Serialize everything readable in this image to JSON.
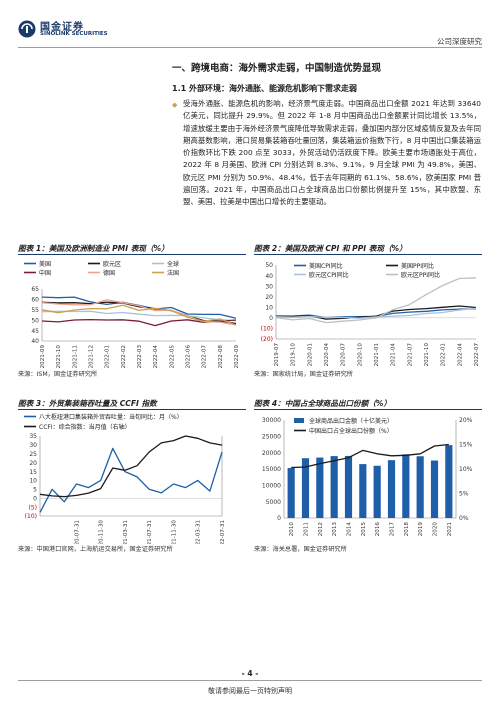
{
  "header": {
    "logo_cn": "国金证券",
    "logo_en": "SINOLINK SECURITIES",
    "report_type": "公司深度研究"
  },
  "section": {
    "h1": "一、跨境电商：海外需求走弱，中国制造优势显现",
    "h2": "1.1 外部环境：海外通胀、能源危机影响下需求走弱",
    "paragraph": "受海外通胀、能源危机的影响，经济景气度走弱。中国商品出口金额 2021 年达到 33640 亿美元，同比提升 29.9%。但 2022 年 1-8 月中国商品出口金额累计同比增长 13.5%，增速放缓主要由于海外经济景气度降低导致需求走弱，叠加国内部分区域疫情反复及去年同期高基数影响，港口贸易集装箱吞吐量回落，集装箱运价指数下行，8 月中国出口集装箱运价指数环比下跌 200 点至 3033，外贸活动仍活跃度下降。欧美主要市场通胀处于高位，2022 年 8 月美国、欧洲 CPI 分别达到 8.3%、9.1%，9 月全球 PMI 为 49.8%，美国、欧元区 PMI 分别为 50.9%、48.4%，低于去年同期的 61.1%、58.6%，欧美国家 PMI 普遍回落。2021 年，中国商品出口占全球商品出口份额比例提升至 15%，其中欧盟、东盟、美国、拉美是中国出口增长的主要驱动。"
  },
  "figures": [
    {
      "label": "图表 1：",
      "title": "美国及欧洲制造业 PMI 表现（%）",
      "source": "来源：ISM，国金证券研究所"
    },
    {
      "label": "图表 2：",
      "title": "美国及欧洲 CPI 和 PPI 表现（%）",
      "source": "来源：国家统计局，国金证券研究所"
    },
    {
      "label": "图表 3：",
      "title": "外贸集装箱吞吐量及 CCFI 指数",
      "source": "来源：中国港口官网，上海航运交易所，国金证券研究所"
    },
    {
      "label": "图表 4：",
      "title": "中国占全球商品出口份额（%）",
      "source": "来源：海关总署，国金证券研究所"
    }
  ],
  "chart_data": [
    {
      "type": "line",
      "x": [
        "2021-09",
        "2021-10",
        "2021-11",
        "2021-12",
        "2022-01",
        "2022-02",
        "2022-03",
        "2022-04",
        "2022-05",
        "2022-06",
        "2022-07",
        "2022-08",
        "2022-09"
      ],
      "x_ticks": [
        "2021-09",
        "2021-10",
        "2021-11",
        "2021-12",
        "2022-01",
        "2022-02",
        "2022-03",
        "2022-04",
        "2022-05",
        "2022-06",
        "2022-07",
        "2022-08",
        "2022-09"
      ],
      "ylim": [
        40,
        65
      ],
      "yticks": [
        40,
        45,
        50,
        55,
        60,
        65
      ],
      "legend_position": "top",
      "series": [
        {
          "name": "美国",
          "color": "#1f5fa8",
          "values": [
            61.1,
            60.8,
            61.1,
            58.8,
            57.6,
            58.6,
            57.1,
            55.4,
            56.1,
            53.0,
            52.8,
            52.8,
            50.9
          ]
        },
        {
          "name": "欧元区",
          "color": "#1a1a1a",
          "values": [
            58.6,
            58.3,
            58.4,
            58.0,
            58.7,
            58.2,
            56.5,
            55.5,
            54.6,
            52.1,
            49.8,
            49.6,
            48.4
          ]
        },
        {
          "name": "全球",
          "color": "#a9c1d9",
          "values": [
            54.1,
            54.3,
            54.2,
            54.3,
            53.2,
            53.7,
            52.9,
            52.2,
            52.3,
            52.2,
            51.1,
            50.3,
            49.8
          ]
        },
        {
          "name": "中国",
          "color": "#7b1c3a",
          "values": [
            49.6,
            49.2,
            50.1,
            50.3,
            50.1,
            50.2,
            49.5,
            47.4,
            49.6,
            50.2,
            49.0,
            49.4,
            50.1
          ]
        },
        {
          "name": "德国",
          "color": "#f0a18f",
          "values": [
            58.4,
            57.8,
            57.4,
            57.4,
            59.8,
            58.4,
            56.9,
            54.6,
            54.8,
            52.0,
            49.3,
            49.1,
            47.8
          ]
        },
        {
          "name": "法国",
          "color": "#c9a34a",
          "values": [
            55.0,
            53.6,
            54.9,
            55.6,
            55.5,
            57.2,
            54.7,
            55.7,
            54.6,
            51.4,
            49.5,
            50.6,
            47.7
          ]
        }
      ]
    },
    {
      "type": "line",
      "x": [
        "2019-07",
        "2019-10",
        "2020-01",
        "2020-04",
        "2020-07",
        "2020-10",
        "2021-01",
        "2021-04",
        "2021-07",
        "2021-10",
        "2022-01",
        "2022-04",
        "2022-07"
      ],
      "x_ticks": [
        "2019-07",
        "2019-10",
        "2020-01",
        "2020-04",
        "2020-07",
        "2020-10",
        "2021-01",
        "2021-04",
        "2021-07",
        "2021-10",
        "2022-01",
        "2022-04",
        "2022-07"
      ],
      "ylim": [
        -20,
        50
      ],
      "yticks": [
        -20,
        -10,
        0,
        10,
        20,
        30,
        40,
        50
      ],
      "ytick_labels": [
        "(20)",
        "(10)",
        "0",
        "10",
        "20",
        "30",
        "40",
        "50"
      ],
      "legend_position": "top",
      "series": [
        {
          "name": "美国CPI同比",
          "color": "#1f5fa8",
          "values": [
            1.8,
            1.8,
            2.5,
            0.3,
            1.0,
            1.2,
            1.4,
            4.2,
            5.4,
            6.2,
            7.5,
            8.3,
            8.5
          ]
        },
        {
          "name": "美国PPI同比",
          "color": "#1a1a1a",
          "values": [
            1.7,
            1.1,
            2.0,
            -1.2,
            -0.4,
            0.5,
            1.6,
            6.4,
            7.9,
            8.8,
            10.0,
            11.2,
            9.8
          ]
        },
        {
          "name": "欧元区CPI同比",
          "color": "#a9c1d9",
          "values": [
            1.0,
            0.7,
            1.4,
            0.3,
            0.4,
            -0.3,
            0.9,
            1.6,
            2.2,
            4.1,
            5.1,
            7.4,
            8.9
          ]
        },
        {
          "name": "欧元区PPI同比",
          "color": "#c0c0c0",
          "values": [
            0.2,
            -1.9,
            -0.6,
            -4.5,
            -3.2,
            -2.0,
            0.0,
            7.6,
            12.4,
            21.9,
            30.6,
            37.2,
            37.9
          ]
        }
      ]
    },
    {
      "type": "line",
      "x": [
        "2020-01-31",
        "2020-03-31",
        "2020-05-31",
        "2020-07-31",
        "2020-09-30",
        "2020-11-30",
        "2021-01-31",
        "2021-03-31",
        "2021-05-31",
        "2021-07-31",
        "2021-09-30",
        "2021-11-30",
        "2022-01-31",
        "2022-03-31",
        "2022-05-31",
        "2022-07-31"
      ],
      "x_ticks": [
        "2020-07-31",
        "2020-11-30",
        "2021-03-31",
        "2021-07-31",
        "2021-11-30",
        "2022-03-31",
        "2022-07-31"
      ],
      "ylim": [
        -10,
        35
      ],
      "yticks": [
        -10,
        -5,
        0,
        5,
        10,
        15,
        20,
        25,
        30,
        35
      ],
      "ytick_labels": [
        "(10)",
        "(5)",
        "0",
        "5",
        "10",
        "15",
        "20",
        "25",
        "30",
        "35"
      ],
      "y2lim": [
        0,
        3500
      ],
      "legend_position": "top-left",
      "series": [
        {
          "name": "八大枢纽港口集装箱外贸吞吐量：当旬同比：月（%）",
          "color": "#1f5fa8",
          "axis": "left",
          "values": [
            -8.0,
            5.0,
            -2.0,
            8.0,
            6.0,
            10.0,
            28.0,
            15.0,
            12.0,
            5.0,
            3.0,
            8.0,
            6.0,
            10.0,
            4.0,
            26.0
          ]
        },
        {
          "name": "CCFI：综合指数：当月值（右轴）",
          "color": "#1a1a1a",
          "axis": "right",
          "values": [
            950,
            880,
            850,
            900,
            1000,
            1200,
            2100,
            2000,
            2200,
            2800,
            3200,
            3300,
            3500,
            3400,
            3200,
            3100
          ]
        }
      ]
    },
    {
      "type": "bar",
      "categories": [
        "2010",
        "2011",
        "2012",
        "2013",
        "2014",
        "2015",
        "2016",
        "2017",
        "2018",
        "2019",
        "2020",
        "2021"
      ],
      "ylim": [
        0,
        30000
      ],
      "yticks": [
        0,
        5000,
        10000,
        15000,
        20000,
        25000,
        30000
      ],
      "y2lim": [
        0,
        20
      ],
      "y2ticks": [
        0,
        5,
        10,
        15,
        20
      ],
      "y2tick_labels": [
        "0%",
        "5%",
        "10%",
        "15%",
        "20%"
      ],
      "legend_position": "top-left",
      "series": [
        {
          "name": "全球商品出口金额（十亿美元）",
          "color": "#1f5fa8",
          "type": "bar",
          "axis": "left",
          "values": [
            15300,
            18300,
            18500,
            18950,
            19000,
            16500,
            16000,
            17700,
            19500,
            18900,
            17600,
            22300
          ]
        },
        {
          "name": "中国出口占全球出口份额（%）",
          "color": "#1a1a1a",
          "type": "line",
          "axis": "right",
          "values": [
            10.3,
            10.4,
            11.1,
            11.7,
            12.3,
            13.8,
            13.1,
            12.7,
            12.8,
            13.1,
            14.7,
            15.0
          ]
        }
      ]
    }
  ],
  "footer": {
    "page": "- 4 -",
    "disclaimer": "敬请参阅最后一页特别声明"
  }
}
